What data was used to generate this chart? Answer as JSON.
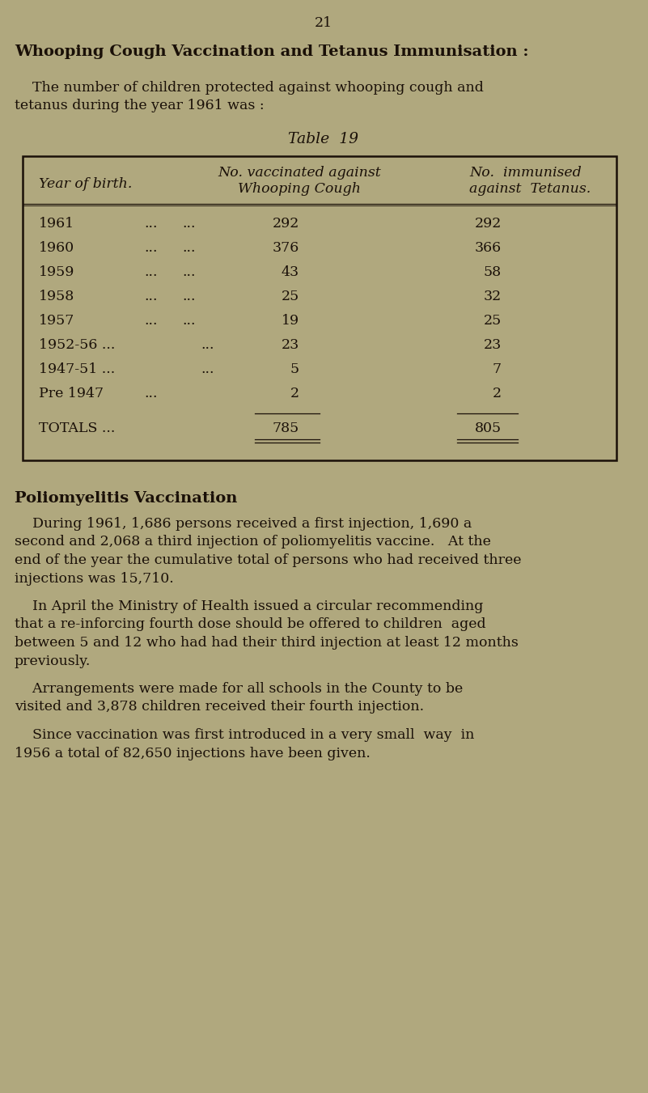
{
  "bg_color": "#b0a87e",
  "text_color": "#1a1008",
  "page_number": "21",
  "section_title": "Whooping Cough Vaccination and Tetanus Immunisation :",
  "intro_line1": "    The number of children protected against whooping cough and",
  "intro_line2": "tetanus during the year 1961 was :",
  "table_title": "Table  19",
  "table_col1_header": "Year of birth.",
  "table_col2_header_line1": "No. vaccinated against",
  "table_col2_header_line2": "Whooping Cough",
  "table_col3_header_line1": "No.  immunised",
  "table_col3_header_line2": "against  Tetanus.",
  "table_rows": [
    {
      "year": "1961",
      "dots1": "...",
      "dots2": "...",
      "wc": "292",
      "tet": "292"
    },
    {
      "year": "1960",
      "dots1": "...",
      "dots2": "...",
      "wc": "376",
      "tet": "366"
    },
    {
      "year": "1959",
      "dots1": "...",
      "dots2": "...",
      "wc": "43",
      "tet": "58"
    },
    {
      "year": "1958",
      "dots1": "...",
      "dots2": "...",
      "wc": "25",
      "tet": "32"
    },
    {
      "year": "1957",
      "dots1": "...",
      "dots2": "...",
      "wc": "19",
      "tet": "25"
    },
    {
      "year": "1952-56 ...",
      "dots1": "...",
      "dots2": "",
      "wc": "23",
      "tet": "23"
    },
    {
      "year": "1947-51 ...",
      "dots1": "...",
      "dots2": "",
      "wc": "5",
      "tet": "7"
    },
    {
      "year": "Pre 1947",
      "dots1": "...",
      "dots2": "",
      "wc": "2",
      "tet": "2"
    }
  ],
  "totals_label": "TOTALS ...",
  "totals_wc": "785",
  "totals_tet": "805",
  "polio_title": "Poliomyelitis Vaccination",
  "polio_para1_indent": "    During 1961, 1,686 persons received a first injection, 1,690 a",
  "polio_para1_l2": "second and 2,068 a third injection of poliomyelitis vaccine.   At the",
  "polio_para1_l3": "end of the year the cumulative total of persons who had received three",
  "polio_para1_l4": "injections was 15,710.",
  "polio_para2_indent": "    In April the Ministry of Health issued a circular recommending",
  "polio_para2_l2": "that a re-inforcing fourth dose should be offered to children  aged",
  "polio_para2_l3": "between 5 and 12 who had had their third injection at least 12 months",
  "polio_para2_l4": "previously.",
  "polio_para3_indent": "    Arrangements were made for all schools in the County to be",
  "polio_para3_l2": "visited and 3,878 children received their fourth injection.",
  "polio_para4_indent": "    Since vaccination was first introduced in a very small  way  in",
  "polio_para4_l2": "1956 a total of 82,650 injections have been given."
}
